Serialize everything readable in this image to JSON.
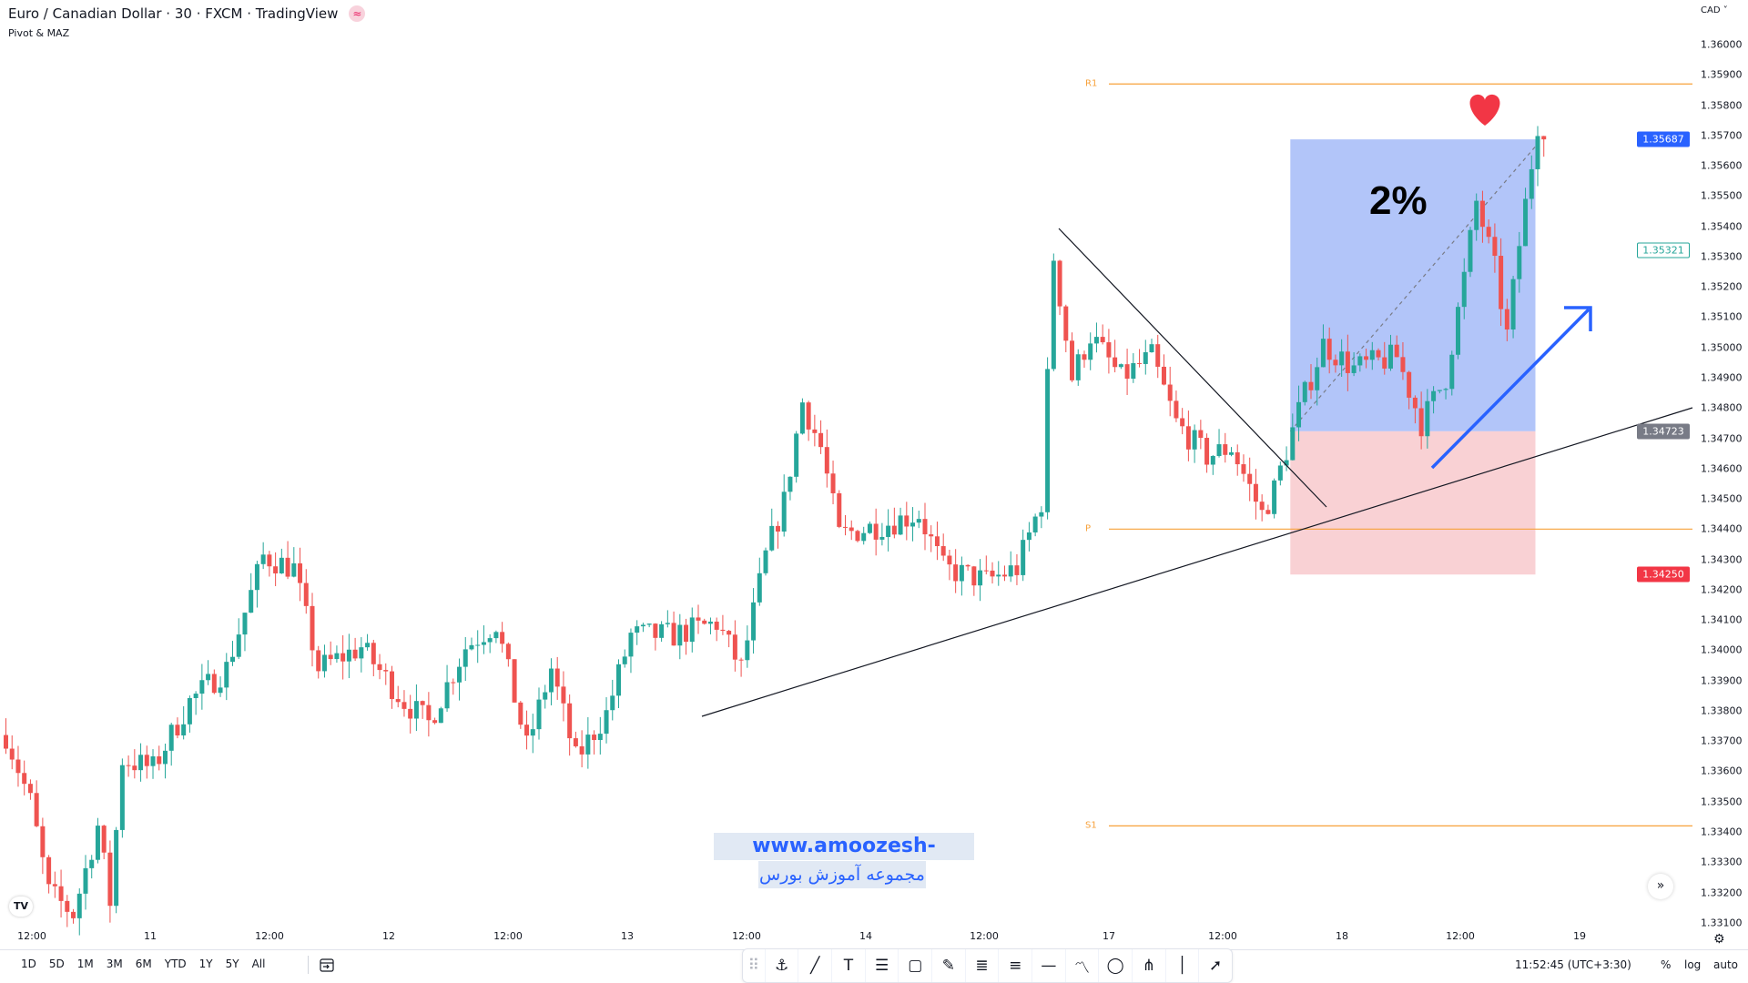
{
  "header": {
    "title": "Euro / Canadian Dollar · 30 · FXCM · TradingView",
    "indicator": "Pivot & MAZ",
    "badge_icon": "approx-icon",
    "currency": "CAD ˅"
  },
  "price_axis": {
    "ticks": [
      "1.36000",
      "1.35900",
      "1.35800",
      "1.35700",
      "1.35600",
      "1.35500",
      "1.35400",
      "1.35300",
      "1.35200",
      "1.35100",
      "1.35000",
      "1.34900",
      "1.34800",
      "1.34700",
      "1.34600",
      "1.34500",
      "1.34400",
      "1.34300",
      "1.34200",
      "1.34100",
      "1.34000",
      "1.33900",
      "1.33800",
      "1.33700",
      "1.33600",
      "1.33500",
      "1.33400",
      "1.33300",
      "1.33200",
      "1.33100"
    ],
    "labels": [
      {
        "text": "1.35687",
        "price": 1.35687,
        "bg": "#2962ff",
        "fg": "#ffffff",
        "border": "#2962ff"
      },
      {
        "text": "1.35321",
        "price": 1.35321,
        "bg": "#ffffff",
        "fg": "#26a69a",
        "border": "#26a69a"
      },
      {
        "text": "1.34723",
        "price": 1.34723,
        "bg": "#787b86",
        "fg": "#ffffff",
        "border": "#787b86"
      },
      {
        "text": "1.34250",
        "price": 1.3425,
        "bg": "#f23645",
        "fg": "#ffffff",
        "border": "#f23645"
      }
    ]
  },
  "time_axis": [
    "12:00",
    "11",
    "12:00",
    "12",
    "12:00",
    "13",
    "12:00",
    "14",
    "12:00",
    "17",
    "12:00",
    "18",
    "12:00",
    "19"
  ],
  "pivots": [
    {
      "label": "R1",
      "price": 1.3587
    },
    {
      "label": "P",
      "price": 1.344
    },
    {
      "label": "S1",
      "price": 1.3342
    }
  ],
  "position": {
    "target": 1.35687,
    "entry": 1.34723,
    "stop": 1.3425,
    "start_bar": 210,
    "end_bar": 250,
    "annotation": "2%"
  },
  "colors": {
    "up": "#26a69a",
    "down": "#ef5350",
    "pivot": "#f7a13a",
    "profit": "#b2c5f9",
    "loss": "#f9d1d4",
    "arrow": "#2962ff",
    "heart": "#f23645"
  },
  "price_path": [
    [
      0,
      1.3372
    ],
    [
      4,
      1.335
    ],
    [
      7,
      1.332
    ],
    [
      11,
      1.3313
    ],
    [
      15,
      1.3342
    ],
    [
      17,
      1.3317
    ],
    [
      19,
      1.3364
    ],
    [
      24,
      1.3361
    ],
    [
      30,
      1.3383
    ],
    [
      36,
      1.3394
    ],
    [
      42,
      1.3431
    ],
    [
      47,
      1.3427
    ],
    [
      51,
      1.3394
    ],
    [
      58,
      1.3401
    ],
    [
      65,
      1.3383
    ],
    [
      69,
      1.3376
    ],
    [
      75,
      1.3401
    ],
    [
      80,
      1.3409
    ],
    [
      85,
      1.3368
    ],
    [
      89,
      1.3394
    ],
    [
      93,
      1.3364
    ],
    [
      98,
      1.3379
    ],
    [
      102,
      1.3405
    ],
    [
      109,
      1.3405
    ],
    [
      116,
      1.3409
    ],
    [
      120,
      1.3394
    ],
    [
      124,
      1.3431
    ],
    [
      127,
      1.3449
    ],
    [
      130,
      1.3482
    ],
    [
      133,
      1.3467
    ],
    [
      136,
      1.3438
    ],
    [
      144,
      1.3442
    ],
    [
      149,
      1.3445
    ],
    [
      153,
      1.3427
    ],
    [
      160,
      1.3423
    ],
    [
      165,
      1.3427
    ],
    [
      169,
      1.3449
    ],
    [
      171,
      1.353
    ],
    [
      174,
      1.349
    ],
    [
      177,
      1.3504
    ],
    [
      182,
      1.349
    ],
    [
      187,
      1.3497
    ],
    [
      191,
      1.3475
    ],
    [
      196,
      1.3464
    ],
    [
      200,
      1.3467
    ],
    [
      205,
      1.3445
    ],
    [
      207,
      1.3453
    ],
    [
      211,
      1.3479
    ],
    [
      215,
      1.3501
    ],
    [
      220,
      1.3493
    ],
    [
      227,
      1.3497
    ],
    [
      231,
      1.3475
    ],
    [
      235,
      1.349
    ],
    [
      238,
      1.3523
    ],
    [
      240,
      1.3548
    ],
    [
      243,
      1.3526
    ],
    [
      245,
      1.3504
    ],
    [
      247,
      1.3534
    ],
    [
      250,
      1.3574
    ],
    [
      251,
      1.35687
    ]
  ],
  "watermark": {
    "url": "www.amoozesh-boors.com",
    "persian": "مجموعه آموزش بورس"
  },
  "bottom": {
    "ranges": [
      "1D",
      "5D",
      "1M",
      "3M",
      "6M",
      "YTD",
      "1Y",
      "5Y",
      "All"
    ],
    "clock": "11:52:45 (UTC+3:30)",
    "percent": "%",
    "log": "log",
    "auto": "auto"
  },
  "logo": "TV",
  "scroll_label": "»",
  "tools": [
    "drag-handle-icon",
    "pin-anchor-icon",
    "trend-line-icon",
    "text-icon",
    "horizontal-lines-icon",
    "rectangle-icon",
    "brush-icon",
    "fib-retracement-icon",
    "fib-extension-icon",
    "horizontal-ray-icon",
    "path-icon",
    "ellipse-icon",
    "pitchfork-icon",
    "vertical-line-icon",
    "arrow-icon"
  ]
}
